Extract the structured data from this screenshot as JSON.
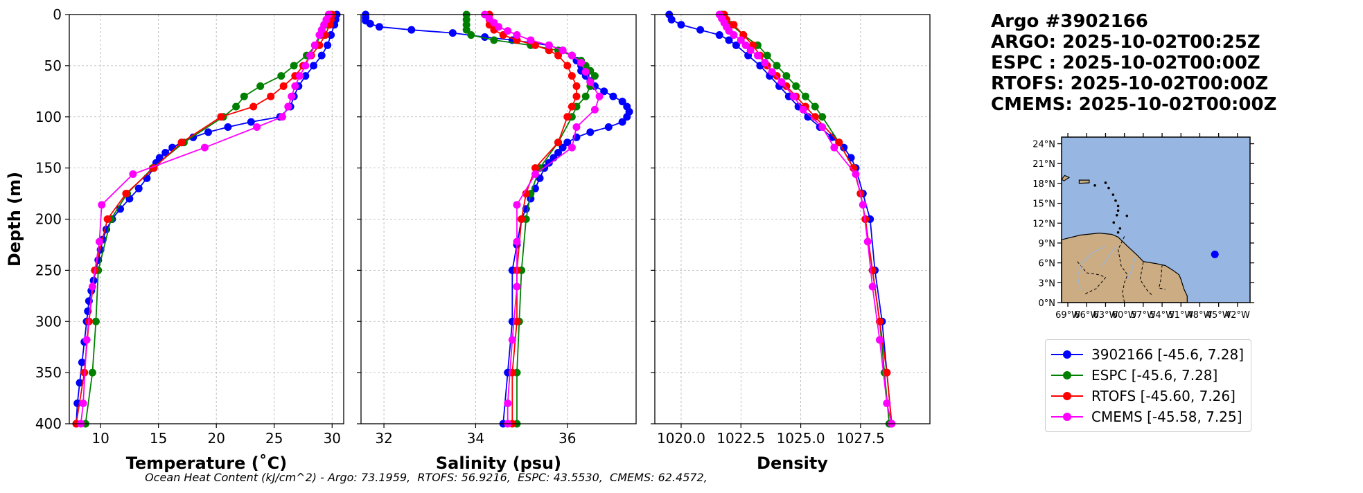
{
  "title": {
    "float_id": "Argo #3902166",
    "argo_time": "ARGO: 2025-10-02T00:25Z",
    "espc_time": "ESPC : 2025-10-02T00:00Z",
    "rtofs_time": "RTOFS: 2025-10-02T00:00Z",
    "cmems_time": "CMEMS: 2025-10-02T00:00Z"
  },
  "footer": "Ocean Heat Content (kJ/cm^2) - Argo: 73.1959,  RTOFS: 56.9216,  ESPC: 43.5530,  CMEMS: 62.4572,",
  "legend": [
    {
      "label": "3902166 [-45.6, 7.28]",
      "color": "#0000ff"
    },
    {
      "label": "ESPC [-45.6, 7.28]",
      "color": "#008000"
    },
    {
      "label": "RTOFS [-45.60, 7.26]",
      "color": "#ff0000"
    },
    {
      "label": "CMEMS [-45.58, 7.25]",
      "color": "#ff00ff"
    }
  ],
  "map": {
    "lat_ticks": [
      "0°N",
      "3°N",
      "6°N",
      "9°N",
      "12°N",
      "15°N",
      "18°N",
      "21°N",
      "24°N"
    ],
    "lon_ticks": [
      "69°W",
      "66°W",
      "63°W",
      "60°W",
      "57°W",
      "54°W",
      "51°W",
      "48°W",
      "45°W",
      "42°W"
    ],
    "lon_range": [
      -70,
      -40
    ],
    "lat_range": [
      0,
      25
    ],
    "float_position": [
      -45.6,
      7.28
    ],
    "ocean_color": "#97b6e1",
    "land_color": "#cbac83"
  },
  "chart_data": [
    {
      "type": "line",
      "xlabel": "Temperature (˚C)",
      "ylabel": "Depth (m)",
      "xlim": [
        7.3,
        31
      ],
      "ylim": [
        400,
        0
      ],
      "xticks": [
        10,
        15,
        20,
        25,
        30
      ],
      "yticks": [
        0,
        50,
        100,
        150,
        200,
        250,
        300,
        350,
        400
      ],
      "grid": true,
      "series": [
        {
          "name": "3902166",
          "color": "#0000ff",
          "depth": [
            0,
            5,
            10,
            20,
            30,
            40,
            50,
            60,
            70,
            80,
            90,
            100,
            105,
            110,
            115,
            120,
            125,
            130,
            135,
            140,
            145,
            150,
            160,
            170,
            180,
            190,
            200,
            210,
            220,
            230,
            240,
            250,
            260,
            270,
            280,
            290,
            300,
            320,
            340,
            360,
            380,
            400
          ],
          "values": [
            30.4,
            30.3,
            30.2,
            29.9,
            29.6,
            29.1,
            28.4,
            27.7,
            27.1,
            26.7,
            26.4,
            25.5,
            23.0,
            21.0,
            19.3,
            18.0,
            17.0,
            16.2,
            15.6,
            15.1,
            14.8,
            14.6,
            14.0,
            13.3,
            12.5,
            11.7,
            11.0,
            10.5,
            10.2,
            10.0,
            9.8,
            9.6,
            9.4,
            9.2,
            9.0,
            8.9,
            8.8,
            8.6,
            8.4,
            8.2,
            8.0,
            7.9
          ]
        },
        {
          "name": "ESPC",
          "color": "#008000",
          "depth": [
            0,
            5,
            10,
            20,
            30,
            40,
            50,
            60,
            70,
            80,
            90,
            100,
            125,
            150,
            175,
            200,
            250,
            300,
            350,
            400
          ],
          "values": [
            29.9,
            29.8,
            29.6,
            29.0,
            28.6,
            27.8,
            26.7,
            25.6,
            23.8,
            22.4,
            21.7,
            20.6,
            17.2,
            14.5,
            12.3,
            10.9,
            9.8,
            9.6,
            9.3,
            8.7
          ]
        },
        {
          "name": "RTOFS",
          "color": "#ff0000",
          "depth": [
            0,
            5,
            10,
            20,
            30,
            40,
            50,
            60,
            70,
            80,
            90,
            100,
            125,
            150,
            175,
            200,
            250,
            300,
            350,
            400
          ],
          "values": [
            30.0,
            29.9,
            29.8,
            29.4,
            28.9,
            28.2,
            27.5,
            26.8,
            25.8,
            24.7,
            23.2,
            20.4,
            17.0,
            14.6,
            12.2,
            10.6,
            9.5,
            9.0,
            8.6,
            7.9
          ]
        },
        {
          "name": "CMEMS",
          "color": "#ff00ff",
          "depth": [
            0,
            5,
            10,
            15,
            20,
            30,
            40,
            50,
            60,
            70,
            80,
            90,
            100,
            110,
            130,
            156,
            186,
            222,
            266,
            318,
            380,
            400
          ],
          "values": [
            29.7,
            29.5,
            29.3,
            29.1,
            28.9,
            28.5,
            28.1,
            27.7,
            27.2,
            26.8,
            26.5,
            26.2,
            25.7,
            23.5,
            19.0,
            12.8,
            10.1,
            9.9,
            9.3,
            8.8,
            8.5,
            8.3
          ]
        }
      ]
    },
    {
      "type": "line",
      "xlabel": "Salinity (psu)",
      "xlim": [
        31.5,
        37.5
      ],
      "ylim": [
        400,
        0
      ],
      "xticks": [
        32,
        34,
        36
      ],
      "yticks": [
        0,
        50,
        100,
        150,
        200,
        250,
        300,
        350,
        400
      ],
      "grid": true,
      "series": [
        {
          "name": "3902166",
          "color": "#0000ff",
          "depth": [
            0,
            3,
            6,
            9,
            12,
            15,
            18,
            22,
            25,
            30,
            35,
            40,
            45,
            50,
            55,
            60,
            65,
            70,
            75,
            80,
            85,
            90,
            95,
            100,
            105,
            110,
            115,
            120,
            125,
            130,
            135,
            140,
            145,
            150,
            160,
            170,
            180,
            190,
            200,
            225,
            250,
            300,
            350,
            400
          ],
          "values": [
            31.6,
            31.6,
            31.6,
            31.7,
            31.9,
            32.6,
            33.5,
            34.2,
            34.8,
            35.6,
            35.9,
            36.1,
            36.2,
            36.3,
            36.3,
            36.4,
            36.5,
            36.6,
            36.8,
            37.0,
            37.2,
            37.3,
            37.35,
            37.3,
            37.2,
            36.9,
            36.5,
            36.2,
            36.0,
            35.9,
            35.8,
            35.7,
            35.6,
            35.5,
            35.4,
            35.3,
            35.2,
            35.1,
            35.0,
            34.9,
            34.8,
            34.8,
            34.7,
            34.6
          ]
        },
        {
          "name": "ESPC",
          "color": "#008000",
          "depth": [
            0,
            5,
            10,
            15,
            20,
            25,
            30,
            35,
            40,
            45,
            50,
            55,
            60,
            70,
            80,
            90,
            100,
            125,
            150,
            175,
            200,
            250,
            300,
            350,
            400
          ],
          "values": [
            33.8,
            33.8,
            33.8,
            33.8,
            33.9,
            34.4,
            35.2,
            35.8,
            36.1,
            36.3,
            36.4,
            36.5,
            36.6,
            36.5,
            36.4,
            36.2,
            36.1,
            35.8,
            35.4,
            35.2,
            35.1,
            35.0,
            34.95,
            34.9,
            34.9
          ]
        },
        {
          "name": "RTOFS",
          "color": "#ff0000",
          "depth": [
            0,
            5,
            10,
            15,
            20,
            25,
            30,
            35,
            40,
            50,
            60,
            70,
            80,
            90,
            100,
            125,
            150,
            175,
            200,
            250,
            300,
            350,
            400
          ],
          "values": [
            34.3,
            34.3,
            34.3,
            34.4,
            34.6,
            34.9,
            35.3,
            35.6,
            35.8,
            36.0,
            36.1,
            36.2,
            36.2,
            36.1,
            36.0,
            35.8,
            35.3,
            35.1,
            35.0,
            34.9,
            34.9,
            34.8,
            34.8
          ]
        },
        {
          "name": "CMEMS",
          "color": "#ff00ff",
          "depth": [
            0,
            4,
            8,
            12,
            16,
            20,
            25,
            30,
            35,
            40,
            47,
            56,
            66,
            80,
            93,
            110,
            130,
            156,
            186,
            222,
            266,
            318,
            380,
            400
          ],
          "values": [
            34.2,
            34.3,
            34.4,
            34.5,
            34.7,
            34.9,
            35.2,
            35.6,
            35.9,
            36.1,
            36.3,
            36.4,
            36.5,
            36.7,
            36.6,
            36.2,
            36.1,
            35.3,
            34.9,
            34.9,
            34.9,
            34.8,
            34.7,
            34.7
          ]
        }
      ]
    },
    {
      "type": "line",
      "xlabel": "Density",
      "xlim": [
        1018.9,
        1030.4
      ],
      "ylim": [
        400,
        0
      ],
      "xticks": [
        1020.0,
        1022.5,
        1025.0,
        1027.5
      ],
      "yticks": [
        0,
        50,
        100,
        150,
        200,
        250,
        300,
        350,
        400
      ],
      "grid": true,
      "series": [
        {
          "name": "3902166",
          "color": "#0000ff",
          "depth": [
            0,
            5,
            10,
            15,
            20,
            25,
            30,
            40,
            50,
            60,
            70,
            80,
            90,
            100,
            110,
            120,
            130,
            140,
            150,
            175,
            200,
            250,
            300,
            350,
            400
          ],
          "values": [
            1019.5,
            1019.6,
            1020.0,
            1020.8,
            1021.6,
            1022.0,
            1022.3,
            1022.8,
            1023.3,
            1023.7,
            1024.1,
            1024.5,
            1024.9,
            1025.3,
            1025.8,
            1026.3,
            1026.8,
            1027.1,
            1027.3,
            1027.6,
            1027.9,
            1028.1,
            1028.4,
            1028.6,
            1028.8
          ]
        },
        {
          "name": "ESPC",
          "color": "#008000",
          "depth": [
            0,
            5,
            10,
            20,
            30,
            40,
            50,
            60,
            70,
            80,
            90,
            100,
            125,
            150,
            175,
            200,
            250,
            300,
            350,
            400
          ],
          "values": [
            1021.7,
            1021.8,
            1022.1,
            1022.6,
            1023.2,
            1023.6,
            1024.0,
            1024.4,
            1024.8,
            1025.2,
            1025.6,
            1025.9,
            1026.6,
            1027.2,
            1027.5,
            1027.7,
            1028.0,
            1028.3,
            1028.5,
            1028.7
          ]
        },
        {
          "name": "RTOFS",
          "color": "#ff0000",
          "depth": [
            0,
            5,
            10,
            20,
            30,
            40,
            50,
            60,
            70,
            80,
            90,
            100,
            125,
            150,
            175,
            200,
            250,
            300,
            350,
            400
          ],
          "values": [
            1021.8,
            1021.9,
            1022.2,
            1022.6,
            1023.0,
            1023.3,
            1023.6,
            1024.0,
            1024.4,
            1024.8,
            1025.2,
            1025.6,
            1026.6,
            1027.2,
            1027.5,
            1027.7,
            1028.0,
            1028.3,
            1028.6,
            1028.8
          ]
        },
        {
          "name": "CMEMS",
          "color": "#ff00ff",
          "depth": [
            0,
            4,
            8,
            12,
            16,
            20,
            25,
            30,
            35,
            40,
            47,
            56,
            66,
            80,
            93,
            110,
            130,
            156,
            186,
            222,
            266,
            318,
            380,
            400
          ],
          "values": [
            1021.6,
            1021.7,
            1021.8,
            1021.9,
            1022.0,
            1022.2,
            1022.5,
            1022.7,
            1022.9,
            1023.2,
            1023.5,
            1023.8,
            1024.2,
            1024.7,
            1025.1,
            1025.9,
            1026.4,
            1027.3,
            1027.6,
            1027.8,
            1028.0,
            1028.3,
            1028.6,
            1028.8
          ]
        }
      ]
    }
  ]
}
